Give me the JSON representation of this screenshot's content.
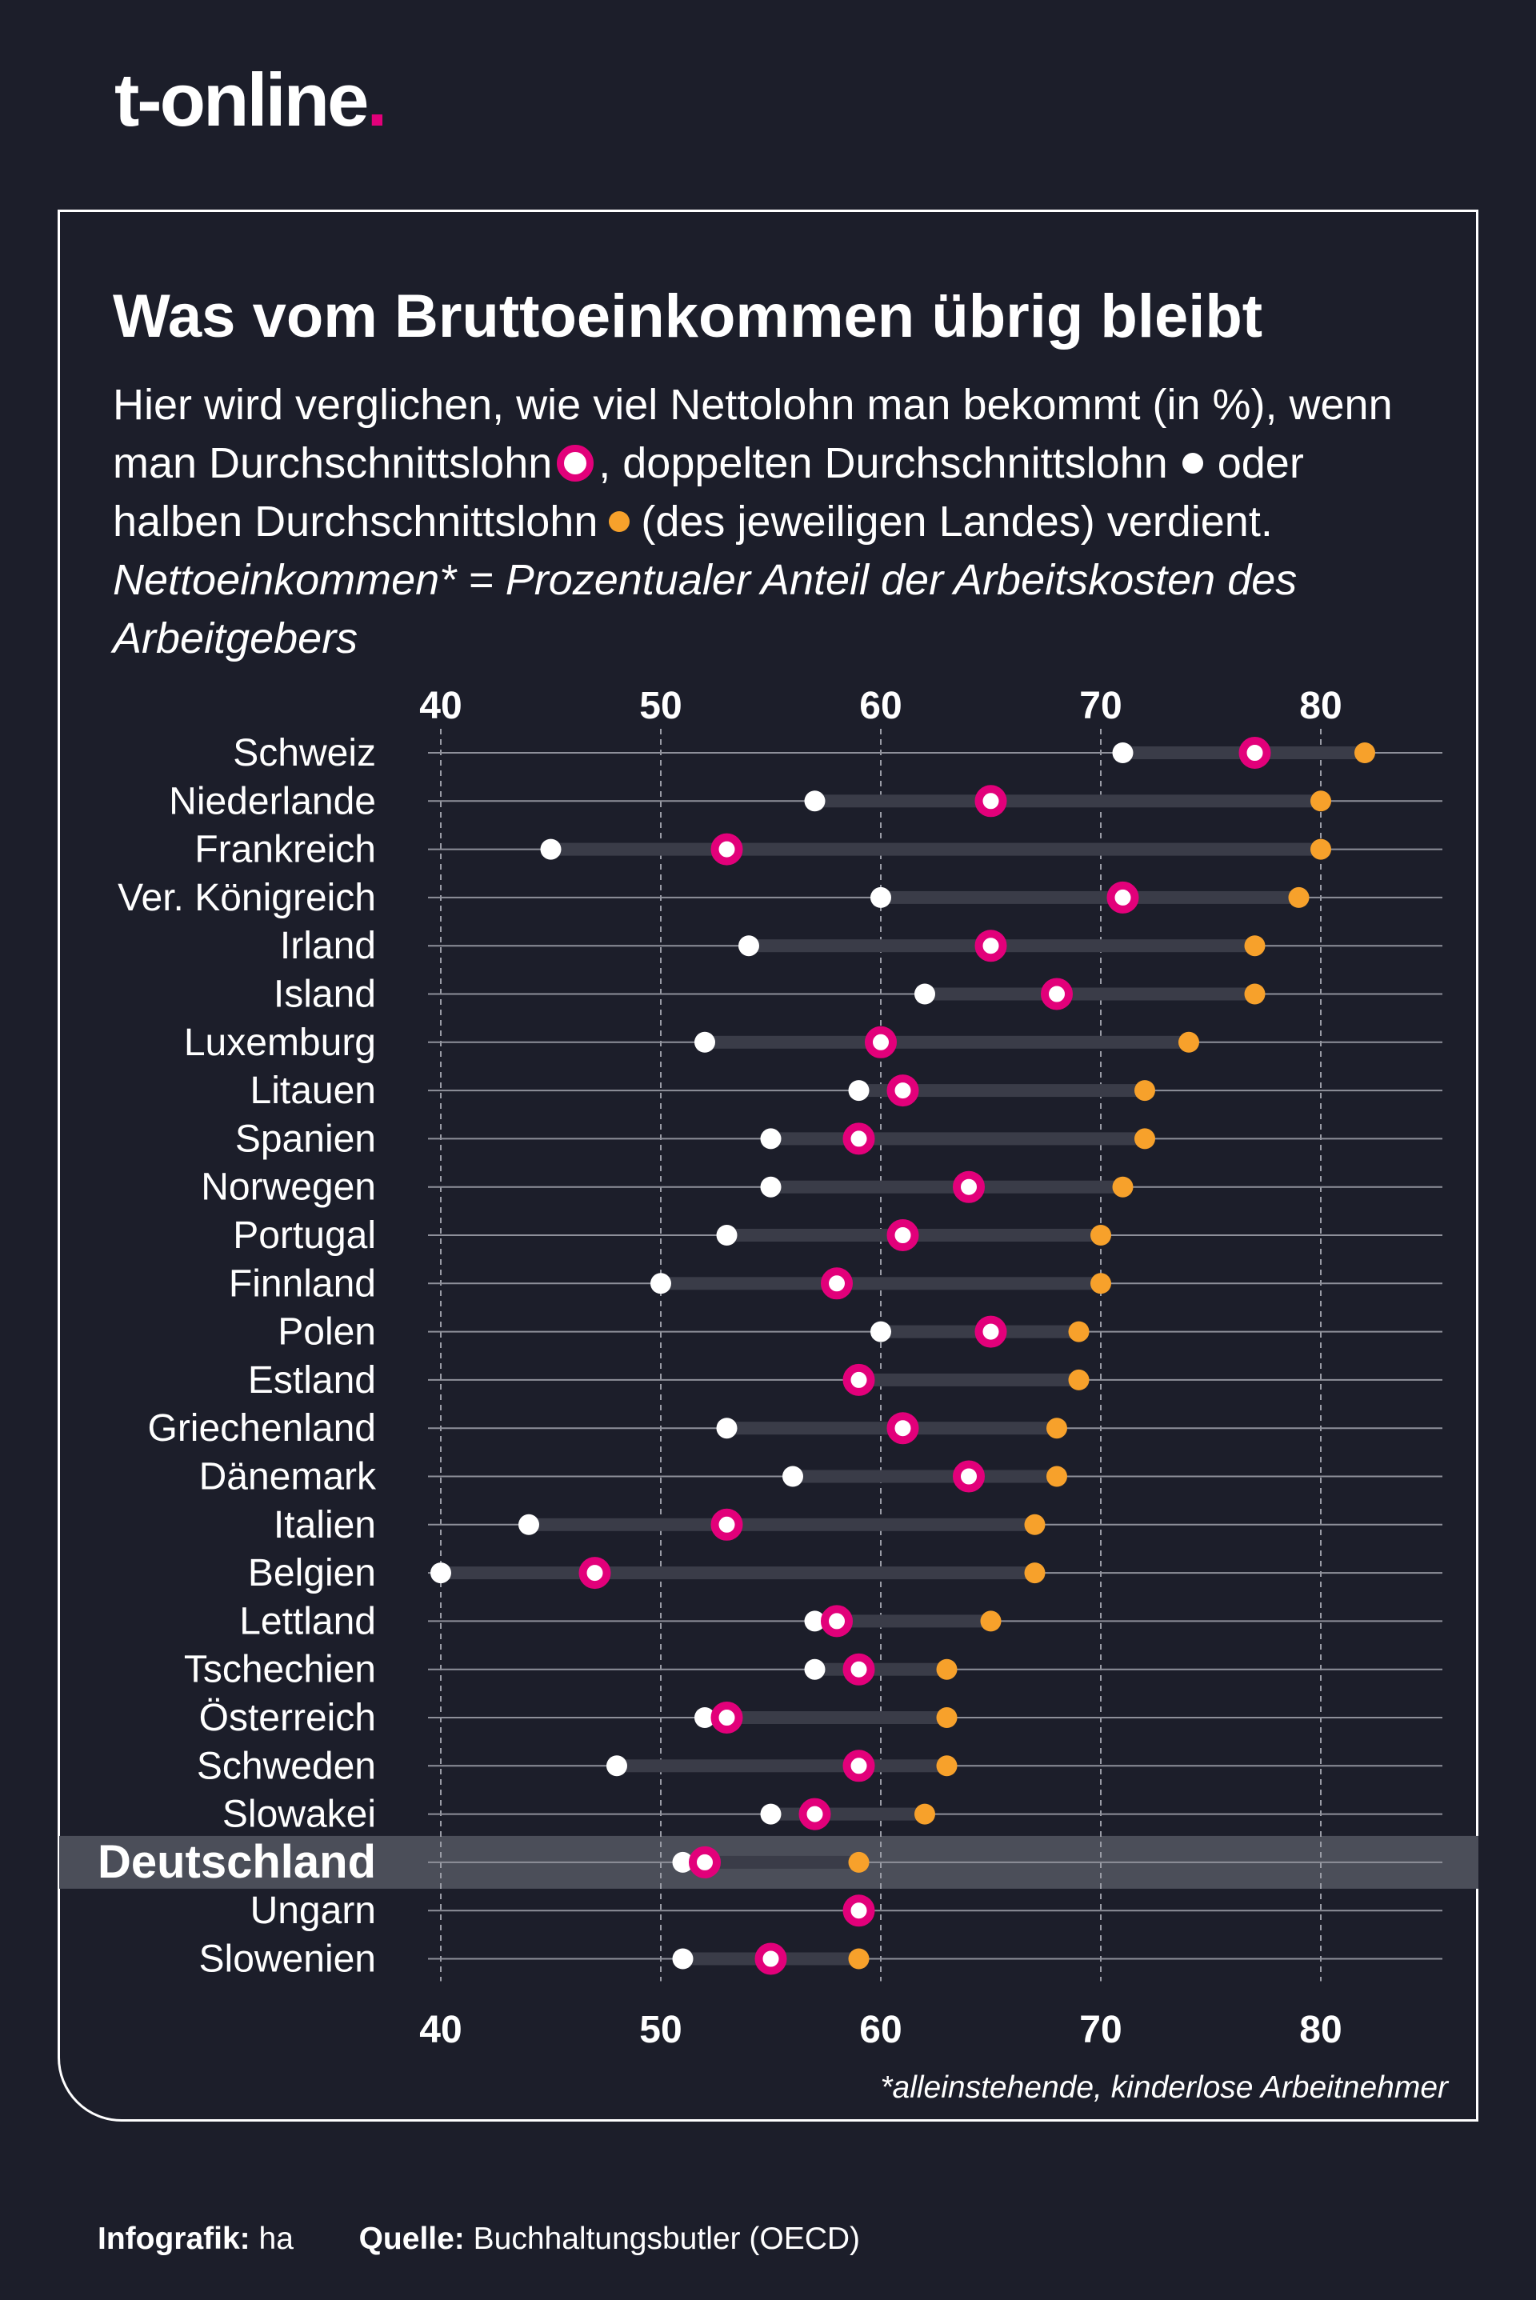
{
  "brand": {
    "logo_text": "t-online",
    "logo_dot": ".",
    "accent": "#e2007a"
  },
  "header": {
    "title": "Was vom Bruttoeinkommen übrig bleibt",
    "intro_line1": "Hier wird verglichen, wie viel Nettolohn man bekommt (in %), wenn",
    "intro_line2a": "man Durchschnittslohn",
    "intro_line2b": ", doppelten Durchschnittslohn",
    "intro_line2c": "oder",
    "intro_line3a": "halben Durchschnittslohn",
    "intro_line3b": "(des jeweiligen Landes) verdient.",
    "note_line1": "Nettoeinkommen* = Prozentualer Anteil der Arbeitskosten des",
    "note_line2": "Arbeitgebers"
  },
  "footnote": "*alleinstehende, kinderlose Arbeitnehmer",
  "footer": {
    "credit_label": "Infografik:",
    "credit_value": "ha",
    "source_label": "Quelle:",
    "source_value": "Buchhaltungsbutler (OECD)"
  },
  "colors": {
    "background": "#1c1e2a",
    "average": "#e2007a",
    "double": "#ffffff",
    "half": "#f7a12b",
    "highlight_row": "#4b4e59"
  },
  "chart_data": {
    "type": "dot-plot",
    "xlim": [
      40,
      85
    ],
    "xticks": [
      40,
      50,
      60,
      70,
      80
    ],
    "grid": true,
    "highlight": "Deutschland",
    "categories": [
      "Schweiz",
      "Niederlande",
      "Frankreich",
      "Ver. Königreich",
      "Irland",
      "Island",
      "Luxemburg",
      "Litauen",
      "Spanien",
      "Norwegen",
      "Portugal",
      "Finnland",
      "Polen",
      "Estland",
      "Griechenland",
      "Dänemark",
      "Italien",
      "Belgien",
      "Lettland",
      "Tschechien",
      "Österreich",
      "Schweden",
      "Slowakei",
      "Deutschland",
      "Ungarn",
      "Slowenien"
    ],
    "series": [
      {
        "key": "average",
        "values": [
          77,
          65,
          53,
          71,
          65,
          68,
          60,
          61,
          59,
          64,
          61,
          58,
          65,
          59,
          61,
          64,
          53,
          47,
          58,
          59,
          53,
          59,
          57,
          52,
          59,
          55
        ]
      },
      {
        "key": "double",
        "values": [
          71,
          57,
          45,
          60,
          54,
          62,
          52,
          59,
          55,
          55,
          53,
          50,
          60,
          59,
          53,
          56,
          44,
          40,
          57,
          57,
          52,
          48,
          55,
          51,
          59,
          51
        ]
      },
      {
        "key": "half",
        "values": [
          82,
          80,
          80,
          79,
          77,
          77,
          74,
          72,
          72,
          71,
          70,
          70,
          69,
          69,
          68,
          68,
          67,
          67,
          65,
          63,
          63,
          63,
          62,
          59,
          59,
          59
        ]
      }
    ]
  }
}
